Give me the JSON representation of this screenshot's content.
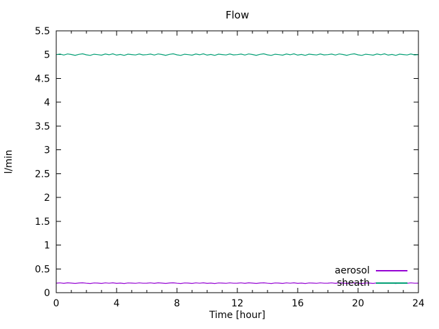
{
  "chart_data": {
    "type": "line",
    "title": "Flow",
    "xlabel": "Time [hour]",
    "ylabel": "l/min",
    "xlim": [
      0,
      24
    ],
    "ylim": [
      0,
      5.5
    ],
    "grid": false,
    "legend_position": "bottom-right",
    "x_ticks": {
      "values": [
        0,
        4,
        8,
        12,
        16,
        20,
        24
      ],
      "labels": [
        "0",
        "4",
        "8",
        "12",
        "16",
        "20",
        "24"
      ],
      "minor_step": 1
    },
    "y_ticks": {
      "values": [
        0,
        0.5,
        1,
        1.5,
        2,
        2.5,
        3,
        3.5,
        4,
        4.5,
        5,
        5.5
      ],
      "labels": [
        "0",
        "0.5",
        "1",
        "1.5",
        "2",
        "2.5",
        "3",
        "3.5",
        "4",
        "4.5",
        "5",
        "5.5"
      ]
    },
    "x_rule": {
      "start": 0,
      "step": 0.25,
      "count": 97,
      "unit": "hour"
    },
    "series": [
      {
        "name": "aerosol",
        "color": "#9400d3",
        "mean": 0.2,
        "values": [
          0.2,
          0.206,
          0.196,
          0.207,
          0.202,
          0.194,
          0.203,
          0.208,
          0.198,
          0.193,
          0.205,
          0.201,
          0.195,
          0.206,
          0.199,
          0.208,
          0.196,
          0.202,
          0.193,
          0.205,
          0.201,
          0.197,
          0.206,
          0.198,
          0.2,
          0.206,
          0.196,
          0.207,
          0.202,
          0.194,
          0.203,
          0.208,
          0.198,
          0.193,
          0.205,
          0.201,
          0.195,
          0.206,
          0.199,
          0.208,
          0.196,
          0.202,
          0.193,
          0.205,
          0.201,
          0.197,
          0.206,
          0.198,
          0.2,
          0.206,
          0.196,
          0.207,
          0.202,
          0.194,
          0.203,
          0.208,
          0.198,
          0.193,
          0.205,
          0.201,
          0.195,
          0.206,
          0.199,
          0.208,
          0.196,
          0.202,
          0.193,
          0.205,
          0.201,
          0.197,
          0.206,
          0.198,
          0.2,
          0.206,
          0.196,
          0.207,
          0.202,
          0.194,
          0.203,
          0.208,
          0.198,
          0.193,
          0.205,
          0.201,
          0.195,
          0.206,
          0.199,
          0.208,
          0.196,
          0.202,
          0.193,
          0.205,
          0.201,
          0.197,
          0.206,
          0.198,
          0.2
        ]
      },
      {
        "name": "sheath",
        "color": "#009e73",
        "mean": 5.0,
        "values": [
          5.0,
          5.012,
          4.992,
          5.015,
          5.003,
          4.986,
          5.006,
          5.018,
          4.996,
          4.984,
          5.009,
          5.001,
          4.989,
          5.014,
          4.998,
          5.017,
          4.991,
          5.004,
          4.985,
          5.011,
          5.002,
          4.993,
          5.013,
          4.995,
          5.0,
          5.012,
          4.992,
          5.015,
          5.003,
          4.986,
          5.006,
          5.018,
          4.996,
          4.984,
          5.009,
          5.001,
          4.989,
          5.014,
          4.998,
          5.017,
          4.991,
          5.004,
          4.985,
          5.011,
          5.002,
          4.993,
          5.013,
          4.995,
          5.0,
          5.012,
          4.992,
          5.015,
          5.003,
          4.986,
          5.006,
          5.018,
          4.996,
          4.984,
          5.009,
          5.001,
          4.989,
          5.014,
          4.998,
          5.017,
          4.991,
          5.004,
          4.985,
          5.011,
          5.002,
          4.993,
          5.013,
          4.995,
          5.0,
          5.012,
          4.992,
          5.015,
          5.003,
          4.986,
          5.006,
          5.018,
          4.996,
          4.984,
          5.009,
          5.001,
          4.989,
          5.014,
          4.998,
          5.017,
          4.991,
          5.004,
          4.985,
          5.011,
          5.002,
          4.993,
          5.013,
          4.995,
          5.0
        ]
      }
    ],
    "colors": {
      "axis": "#000000",
      "background": "#ffffff"
    }
  }
}
